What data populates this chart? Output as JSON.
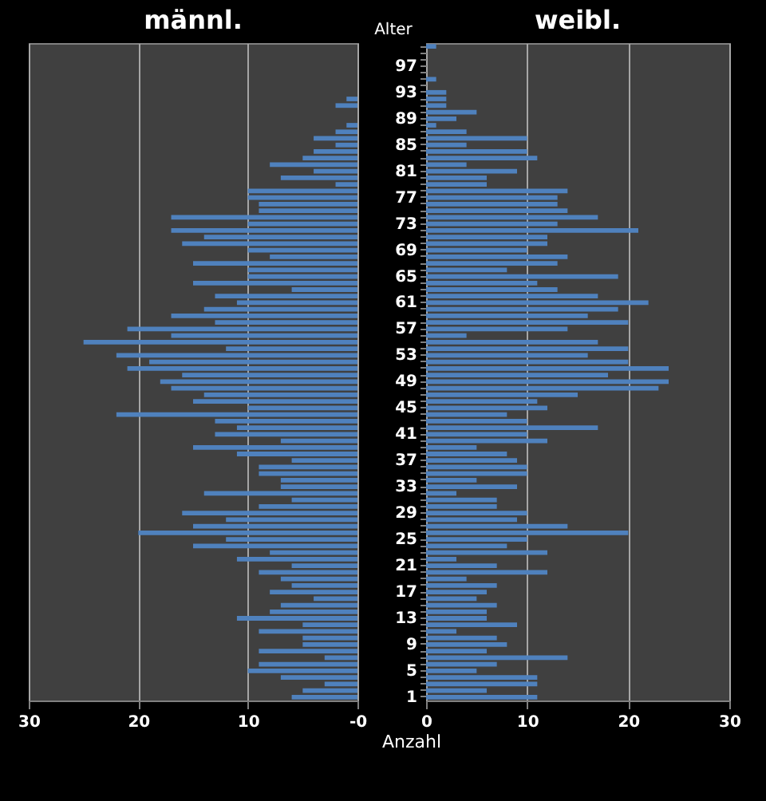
{
  "chart_data": [
    {
      "type": "bar",
      "orientation": "horizontal",
      "title": "männl.",
      "color": "#4f81bd",
      "grid": "x",
      "tick_labels": "x",
      "categories": [
        null,
        null,
        null,
        "97",
        null,
        null,
        null,
        "93",
        null,
        null,
        null,
        "89",
        null,
        null,
        null,
        "85",
        null,
        null,
        null,
        "81",
        null,
        null,
        null,
        "77",
        null,
        null,
        null,
        "73",
        null,
        null,
        null,
        "69",
        null,
        null,
        null,
        "65",
        null,
        null,
        null,
        "61",
        null,
        null,
        null,
        "57",
        null,
        null,
        null,
        "53",
        null,
        null,
        null,
        "49",
        null,
        null,
        null,
        "45",
        null,
        null,
        null,
        "41",
        null,
        null,
        null,
        "37",
        null,
        null,
        null,
        "33",
        null,
        null,
        null,
        "29",
        null,
        null,
        null,
        "25",
        null,
        null,
        null,
        "21",
        null,
        null,
        null,
        "17",
        null,
        null,
        null,
        "13",
        null,
        null,
        null,
        "9",
        null,
        null,
        null,
        "5",
        null,
        null,
        null,
        "1"
      ],
      "values": [
        0,
        0,
        0,
        0,
        0,
        0,
        0,
        0,
        1,
        2,
        0,
        0,
        1,
        2,
        4,
        2,
        4,
        5,
        8,
        4,
        7,
        2,
        10,
        10,
        9,
        9,
        17,
        10,
        17,
        14,
        16,
        10,
        8,
        15,
        10,
        10,
        15,
        6,
        13,
        11,
        14,
        17,
        13,
        21,
        17,
        25,
        12,
        22,
        19,
        21,
        16,
        18,
        17,
        14,
        15,
        10,
        22,
        13,
        11,
        13,
        7,
        15,
        11,
        6,
        9,
        9,
        7,
        7,
        14,
        6,
        9,
        16,
        12,
        15,
        20,
        12,
        15,
        8,
        11,
        6,
        9,
        7,
        6,
        8,
        4,
        7,
        8,
        11,
        5,
        9,
        5,
        5,
        9,
        3,
        9,
        10,
        7,
        3,
        5,
        6
      ],
      "xlim": [
        30,
        0
      ],
      "xticks": [
        30,
        20,
        10,
        {
          "value": 0,
          "label": "-0"
        }
      ]
    },
    {
      "type": "bar",
      "orientation": "horizontal",
      "title": "weibl.",
      "color": "#4f81bd",
      "grid": "x",
      "xlabel": "Anzahl",
      "ylabel": "Alter",
      "categories": [
        null,
        null,
        null,
        "97",
        null,
        null,
        null,
        "93",
        null,
        null,
        null,
        "89",
        null,
        null,
        null,
        "85",
        null,
        null,
        null,
        "81",
        null,
        null,
        null,
        "77",
        null,
        null,
        null,
        "73",
        null,
        null,
        null,
        "69",
        null,
        null,
        null,
        "65",
        null,
        null,
        null,
        "61",
        null,
        null,
        null,
        "57",
        null,
        null,
        null,
        "53",
        null,
        null,
        null,
        "49",
        null,
        null,
        null,
        "45",
        null,
        null,
        null,
        "41",
        null,
        null,
        null,
        "37",
        null,
        null,
        null,
        "33",
        null,
        null,
        null,
        "29",
        null,
        null,
        null,
        "25",
        null,
        null,
        null,
        "21",
        null,
        null,
        null,
        "17",
        null,
        null,
        null,
        "13",
        null,
        null,
        null,
        "9",
        null,
        null,
        null,
        "5",
        null,
        null,
        null,
        "1"
      ],
      "values": [
        1,
        0,
        0,
        0,
        0,
        1,
        0,
        2,
        2,
        2,
        5,
        3,
        1,
        4,
        10,
        4,
        10,
        11,
        4,
        9,
        6,
        6,
        14,
        13,
        13,
        14,
        17,
        13,
        21,
        12,
        12,
        10,
        14,
        13,
        8,
        19,
        11,
        13,
        17,
        22,
        19,
        16,
        20,
        14,
        4,
        17,
        20,
        16,
        20,
        24,
        18,
        24,
        23,
        15,
        11,
        12,
        8,
        10,
        17,
        10,
        12,
        5,
        8,
        9,
        10,
        10,
        5,
        9,
        3,
        7,
        7,
        10,
        9,
        14,
        20,
        10,
        8,
        12,
        3,
        7,
        12,
        4,
        7,
        6,
        5,
        7,
        6,
        6,
        9,
        3,
        7,
        8,
        6,
        14,
        7,
        5,
        11,
        11,
        6,
        11
      ],
      "xlim": [
        0,
        30
      ],
      "xticks": [
        0,
        10,
        20,
        30
      ]
    }
  ]
}
